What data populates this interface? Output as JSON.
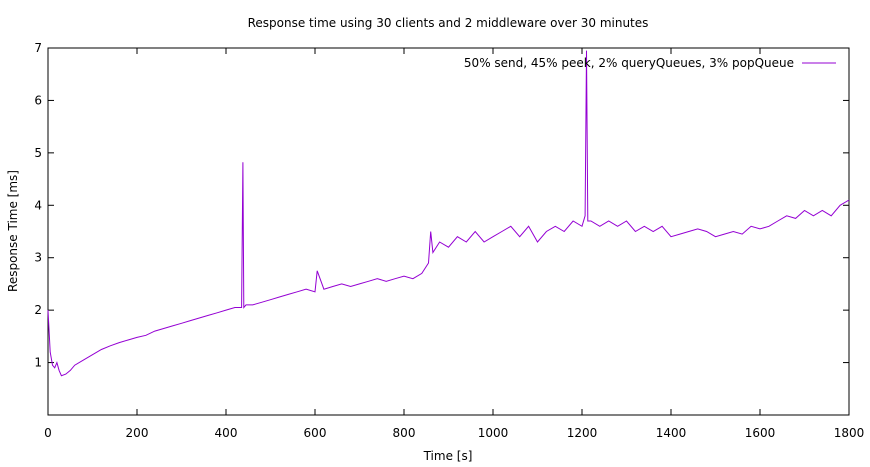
{
  "chart_data": {
    "type": "line",
    "title": "Response time using 30 clients and 2 middleware over 30 minutes",
    "xlabel": "Time [s]",
    "ylabel": "Response Time [ms]",
    "xlim": [
      0,
      1800
    ],
    "ylim": [
      0,
      7
    ],
    "x_ticks": [
      0,
      200,
      400,
      600,
      800,
      1000,
      1200,
      1400,
      1600,
      1800
    ],
    "y_ticks": [
      1,
      2,
      3,
      4,
      5,
      6,
      7
    ],
    "grid": false,
    "legend_position": "top-right",
    "series": [
      {
        "name": "50% send, 45% peek, 2% queryQueues, 3% popQueue",
        "color": "#9400d3",
        "x": [
          0,
          5,
          10,
          15,
          20,
          25,
          30,
          40,
          50,
          60,
          80,
          100,
          120,
          140,
          160,
          180,
          200,
          220,
          240,
          260,
          280,
          300,
          320,
          340,
          360,
          380,
          400,
          420,
          435,
          438,
          440,
          445,
          460,
          480,
          500,
          520,
          540,
          560,
          580,
          600,
          605,
          620,
          640,
          660,
          680,
          700,
          720,
          740,
          760,
          780,
          800,
          820,
          840,
          855,
          860,
          865,
          880,
          900,
          920,
          940,
          960,
          980,
          1000,
          1020,
          1040,
          1060,
          1080,
          1100,
          1120,
          1140,
          1160,
          1180,
          1200,
          1207,
          1210,
          1213,
          1220,
          1240,
          1260,
          1280,
          1300,
          1320,
          1340,
          1360,
          1380,
          1400,
          1420,
          1440,
          1460,
          1480,
          1500,
          1520,
          1540,
          1560,
          1580,
          1600,
          1620,
          1640,
          1660,
          1680,
          1700,
          1720,
          1740,
          1760,
          1780,
          1800
        ],
        "values": [
          2.0,
          1.2,
          0.95,
          0.9,
          1.0,
          0.85,
          0.75,
          0.78,
          0.85,
          0.95,
          1.05,
          1.15,
          1.25,
          1.32,
          1.38,
          1.43,
          1.48,
          1.52,
          1.6,
          1.65,
          1.7,
          1.75,
          1.8,
          1.85,
          1.9,
          1.95,
          2.0,
          2.05,
          2.05,
          4.82,
          2.05,
          2.1,
          2.1,
          2.15,
          2.2,
          2.25,
          2.3,
          2.35,
          2.4,
          2.35,
          2.75,
          2.4,
          2.45,
          2.5,
          2.45,
          2.5,
          2.55,
          2.6,
          2.55,
          2.6,
          2.65,
          2.6,
          2.7,
          2.9,
          3.5,
          3.1,
          3.3,
          3.2,
          3.4,
          3.3,
          3.5,
          3.3,
          3.4,
          3.5,
          3.6,
          3.4,
          3.6,
          3.3,
          3.5,
          3.6,
          3.5,
          3.7,
          3.6,
          3.8,
          6.95,
          3.7,
          3.7,
          3.6,
          3.7,
          3.6,
          3.7,
          3.5,
          3.6,
          3.5,
          3.6,
          3.4,
          3.45,
          3.5,
          3.55,
          3.5,
          3.4,
          3.45,
          3.5,
          3.45,
          3.6,
          3.55,
          3.6,
          3.7,
          3.8,
          3.75,
          3.9,
          3.8,
          3.9,
          3.8,
          4.0,
          4.1
        ]
      }
    ]
  }
}
